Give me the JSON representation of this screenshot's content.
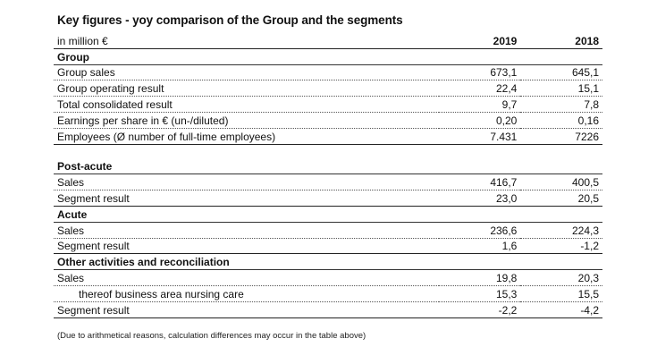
{
  "title": "Key figures - yoy comparison of the Group and the segments",
  "header": {
    "unit": "in million €",
    "col1": "2019",
    "col2": "2018"
  },
  "group": {
    "heading": "Group",
    "rows": [
      {
        "label": "Group sales",
        "v2019": "673,1",
        "v2018": "645,1"
      },
      {
        "label": "Group operating result",
        "v2019": "22,4",
        "v2018": "15,1"
      },
      {
        "label": "Total consolidated result",
        "v2019": "9,7",
        "v2018": "7,8"
      },
      {
        "label": "Earnings per share in € (un-/diluted)",
        "v2019": "0,20",
        "v2018": "0,16"
      },
      {
        "label": "Employees  (Ø number of full-time employees)",
        "v2019": "7.431",
        "v2018": "7226"
      }
    ]
  },
  "post_acute": {
    "heading": "Post-acute",
    "rows": [
      {
        "label": "Sales",
        "v2019": "416,7",
        "v2018": "400,5"
      },
      {
        "label": "Segment result",
        "v2019": "23,0",
        "v2018": "20,5"
      }
    ]
  },
  "acute": {
    "heading": "Acute",
    "rows": [
      {
        "label": "Sales",
        "v2019": "236,6",
        "v2018": "224,3"
      },
      {
        "label": "Segment result",
        "v2019": "1,6",
        "v2018": "-1,2"
      }
    ]
  },
  "other": {
    "heading": "Other activities and reconciliation",
    "rows": [
      {
        "label": "Sales",
        "v2019": "19,8",
        "v2018": "20,3"
      },
      {
        "label": "thereof business area nursing care",
        "v2019": "15,3",
        "v2018": "15,5"
      },
      {
        "label": "Segment result",
        "v2019": "-2,2",
        "v2018": "-4,2"
      }
    ]
  },
  "footnote": "(Due to arithmetical reasons, calculation differences may occur in the table above)"
}
